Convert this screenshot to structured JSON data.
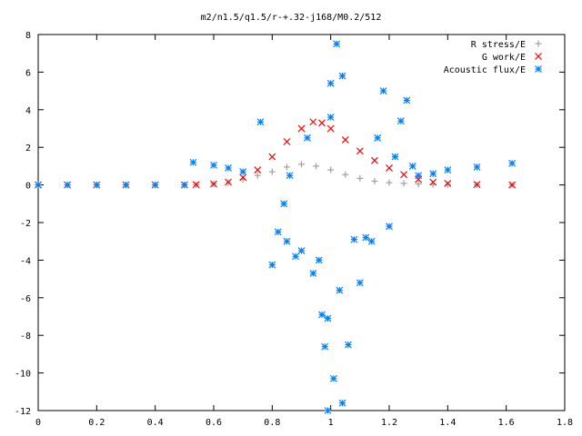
{
  "chart_data": {
    "type": "scatter",
    "title": "m2/n1.5/q1.5/r-+.32-j168/M0.2/512",
    "xlabel": "",
    "ylabel": "",
    "xlim": [
      0,
      1.8
    ],
    "ylim": [
      -12,
      8
    ],
    "x_ticks": [
      "0",
      "0.2",
      "0.4",
      "0.6",
      "0.8",
      "1",
      "1.2",
      "1.4",
      "1.6",
      "1.8"
    ],
    "y_ticks": [
      "8",
      "6",
      "4",
      "2",
      "0",
      "-2",
      "-4",
      "-6",
      "-8",
      "-10",
      "-12"
    ],
    "grid": false,
    "legend_position": "top-right",
    "series": [
      {
        "name": "R stress/E",
        "marker": "+",
        "color": "#a0a0a0",
        "points": [
          [
            0.0,
            0.0
          ],
          [
            0.1,
            0.0
          ],
          [
            0.2,
            0.0
          ],
          [
            0.3,
            0.0
          ],
          [
            0.4,
            0.0
          ],
          [
            0.5,
            0.0
          ],
          [
            0.54,
            0.01
          ],
          [
            0.6,
            0.05
          ],
          [
            0.65,
            0.12
          ],
          [
            0.7,
            0.3
          ],
          [
            0.75,
            0.5
          ],
          [
            0.8,
            0.7
          ],
          [
            0.85,
            0.95
          ],
          [
            0.9,
            1.1
          ],
          [
            0.95,
            1.0
          ],
          [
            1.0,
            0.8
          ],
          [
            1.05,
            0.55
          ],
          [
            1.1,
            0.35
          ],
          [
            1.15,
            0.2
          ],
          [
            1.2,
            0.12
          ],
          [
            1.25,
            0.08
          ],
          [
            1.3,
            0.05
          ],
          [
            1.35,
            0.03
          ],
          [
            1.4,
            0.02
          ],
          [
            1.5,
            0.01
          ],
          [
            1.62,
            0.0
          ]
        ]
      },
      {
        "name": "G work/E",
        "marker": "x",
        "color": "#ff0000",
        "points": [
          [
            0.0,
            0.0
          ],
          [
            0.1,
            0.0
          ],
          [
            0.2,
            0.0
          ],
          [
            0.3,
            0.0
          ],
          [
            0.4,
            0.0
          ],
          [
            0.5,
            0.0
          ],
          [
            0.54,
            0.02
          ],
          [
            0.6,
            0.05
          ],
          [
            0.65,
            0.15
          ],
          [
            0.7,
            0.4
          ],
          [
            0.75,
            0.8
          ],
          [
            0.8,
            1.5
          ],
          [
            0.85,
            2.3
          ],
          [
            0.9,
            3.0
          ],
          [
            0.94,
            3.35
          ],
          [
            0.97,
            3.3
          ],
          [
            1.0,
            3.0
          ],
          [
            1.05,
            2.4
          ],
          [
            1.1,
            1.8
          ],
          [
            1.15,
            1.3
          ],
          [
            1.2,
            0.9
          ],
          [
            1.25,
            0.55
          ],
          [
            1.3,
            0.3
          ],
          [
            1.35,
            0.15
          ],
          [
            1.4,
            0.08
          ],
          [
            1.5,
            0.02
          ],
          [
            1.62,
            0.0
          ]
        ]
      },
      {
        "name": "Acoustic flux/E",
        "marker": "*",
        "color": "#0080ff",
        "points": [
          [
            0.0,
            0.0
          ],
          [
            0.1,
            0.0
          ],
          [
            0.2,
            0.0
          ],
          [
            0.3,
            0.0
          ],
          [
            0.4,
            0.0
          ],
          [
            0.5,
            0.0
          ],
          [
            0.53,
            1.2
          ],
          [
            0.6,
            1.05
          ],
          [
            0.65,
            0.9
          ],
          [
            0.7,
            0.7
          ],
          [
            0.76,
            3.35
          ],
          [
            0.8,
            -4.25
          ],
          [
            0.82,
            -2.5
          ],
          [
            0.84,
            -1.0
          ],
          [
            0.85,
            -3.0
          ],
          [
            0.86,
            0.5
          ],
          [
            0.88,
            -3.8
          ],
          [
            0.9,
            -3.5
          ],
          [
            0.92,
            2.5
          ],
          [
            0.94,
            -4.7
          ],
          [
            0.96,
            -4.0
          ],
          [
            0.97,
            -6.9
          ],
          [
            0.98,
            -8.6
          ],
          [
            0.99,
            -7.1
          ],
          [
            0.99,
            -12.0
          ],
          [
            1.0,
            3.6
          ],
          [
            1.0,
            5.4
          ],
          [
            1.01,
            -10.3
          ],
          [
            1.02,
            7.5
          ],
          [
            1.03,
            -5.6
          ],
          [
            1.04,
            -11.6
          ],
          [
            1.04,
            5.8
          ],
          [
            1.06,
            -8.5
          ],
          [
            1.08,
            -2.9
          ],
          [
            1.1,
            -5.2
          ],
          [
            1.12,
            -2.8
          ],
          [
            1.14,
            -3.0
          ],
          [
            1.16,
            2.5
          ],
          [
            1.18,
            5.0
          ],
          [
            1.2,
            -2.2
          ],
          [
            1.22,
            1.5
          ],
          [
            1.24,
            3.4
          ],
          [
            1.26,
            4.5
          ],
          [
            1.28,
            1.0
          ],
          [
            1.3,
            0.5
          ],
          [
            1.35,
            0.6
          ],
          [
            1.4,
            0.8
          ],
          [
            1.5,
            0.95
          ],
          [
            1.62,
            1.15
          ]
        ]
      }
    ]
  }
}
